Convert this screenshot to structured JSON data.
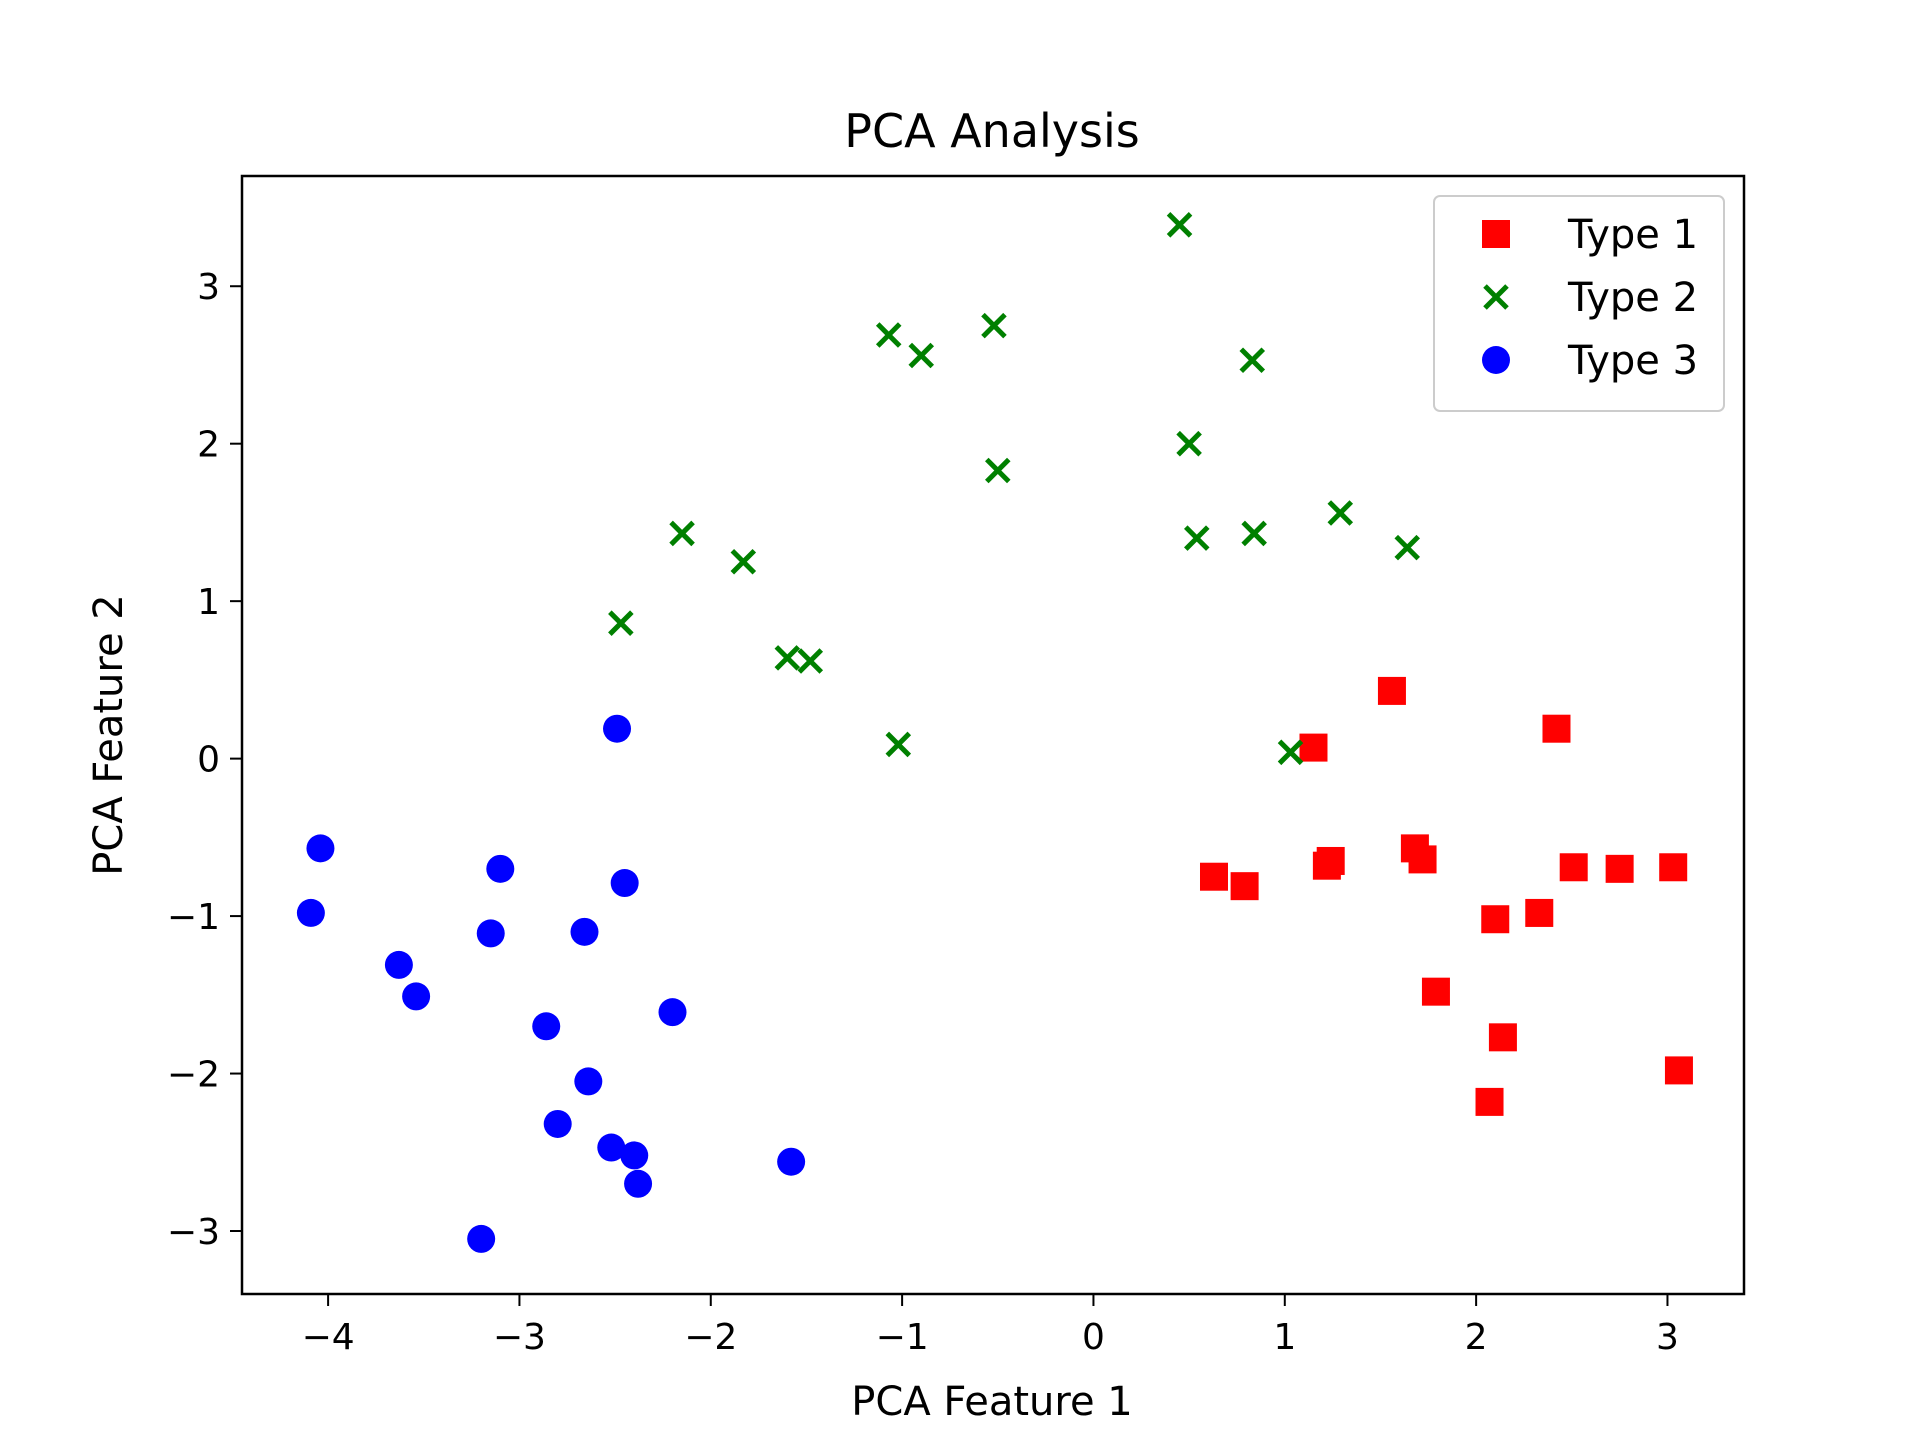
{
  "chart_data": {
    "type": "scatter",
    "title": "PCA Analysis",
    "xlabel": "PCA Feature 1",
    "ylabel": "PCA Feature 2",
    "xlim": [
      -4.45,
      3.4
    ],
    "ylim": [
      -3.4,
      3.7
    ],
    "xticks": [
      {
        "value": -4,
        "label": "−4"
      },
      {
        "value": -3,
        "label": "−3"
      },
      {
        "value": -2,
        "label": "−2"
      },
      {
        "value": -1,
        "label": "−1"
      },
      {
        "value": 0,
        "label": "0"
      },
      {
        "value": 1,
        "label": "1"
      },
      {
        "value": 2,
        "label": "2"
      },
      {
        "value": 3,
        "label": "3"
      }
    ],
    "yticks": [
      {
        "value": -3,
        "label": "−3"
      },
      {
        "value": -2,
        "label": "−2"
      },
      {
        "value": -1,
        "label": "−1"
      },
      {
        "value": 0,
        "label": "0"
      },
      {
        "value": 1,
        "label": "1"
      },
      {
        "value": 2,
        "label": "2"
      },
      {
        "value": 3,
        "label": "3"
      }
    ],
    "grid": false,
    "legend_position": "top-right",
    "series": [
      {
        "name": "Type 1",
        "marker": "square",
        "color": "#ff0000",
        "points": [
          [
            0.63,
            -0.75
          ],
          [
            0.79,
            -0.81
          ],
          [
            1.15,
            0.07
          ],
          [
            1.22,
            -0.68
          ],
          [
            1.24,
            -0.65
          ],
          [
            1.56,
            0.43
          ],
          [
            1.68,
            -0.57
          ],
          [
            1.72,
            -0.64
          ],
          [
            1.79,
            -1.48
          ],
          [
            2.07,
            -2.18
          ],
          [
            2.1,
            -1.02
          ],
          [
            2.14,
            -1.77
          ],
          [
            2.33,
            -0.98
          ],
          [
            2.42,
            0.19
          ],
          [
            2.51,
            -0.69
          ],
          [
            2.75,
            -0.7
          ],
          [
            3.03,
            -0.69
          ],
          [
            3.06,
            -1.98
          ]
        ]
      },
      {
        "name": "Type 2",
        "marker": "x",
        "color": "#008000",
        "points": [
          [
            -2.47,
            0.86
          ],
          [
            -2.15,
            1.43
          ],
          [
            -1.83,
            1.25
          ],
          [
            -1.6,
            0.64
          ],
          [
            -1.48,
            0.62
          ],
          [
            -1.07,
            2.69
          ],
          [
            -1.02,
            0.09
          ],
          [
            -0.9,
            2.56
          ],
          [
            -0.52,
            2.75
          ],
          [
            -0.5,
            1.83
          ],
          [
            0.45,
            3.39
          ],
          [
            0.5,
            2.0
          ],
          [
            0.54,
            1.4
          ],
          [
            0.83,
            2.53
          ],
          [
            0.84,
            1.43
          ],
          [
            1.03,
            0.04
          ],
          [
            1.29,
            1.56
          ],
          [
            1.64,
            1.34
          ]
        ]
      },
      {
        "name": "Type 3",
        "marker": "circle",
        "color": "#0000ff",
        "points": [
          [
            -4.04,
            -0.57
          ],
          [
            -4.09,
            -0.98
          ],
          [
            -3.63,
            -1.31
          ],
          [
            -3.54,
            -1.51
          ],
          [
            -3.2,
            -3.05
          ],
          [
            -3.15,
            -1.11
          ],
          [
            -3.1,
            -0.7
          ],
          [
            -2.86,
            -1.7
          ],
          [
            -2.8,
            -2.32
          ],
          [
            -2.66,
            -1.1
          ],
          [
            -2.64,
            -2.05
          ],
          [
            -2.49,
            0.19
          ],
          [
            -2.45,
            -0.79
          ],
          [
            -2.52,
            -2.47
          ],
          [
            -2.4,
            -2.52
          ],
          [
            -2.38,
            -2.7
          ],
          [
            -2.2,
            -1.61
          ],
          [
            -1.58,
            -2.56
          ]
        ]
      }
    ]
  }
}
